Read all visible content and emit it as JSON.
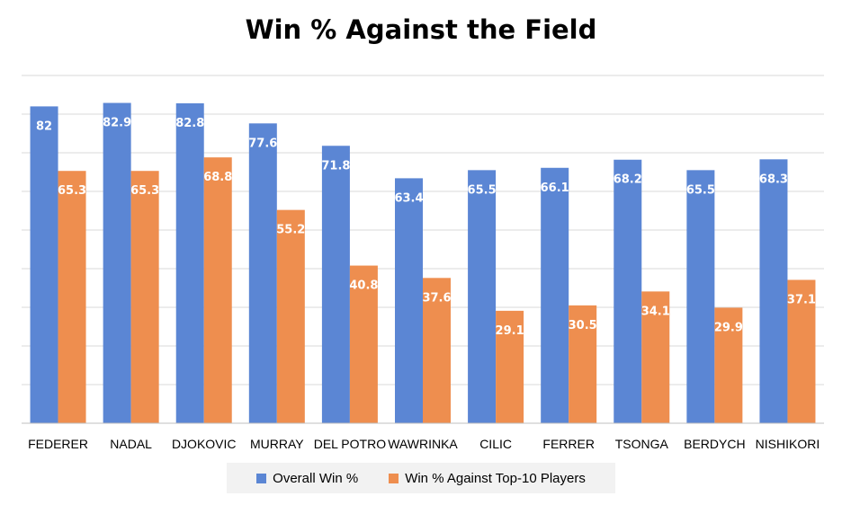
{
  "chart_data": {
    "type": "bar",
    "title": "Win % Against the Field",
    "categories": [
      "FEDERER",
      "NADAL",
      "DJOKOVIC",
      "MURRAY",
      "DEL POTRO",
      "WAWRINKA",
      "CILIC",
      "FERRER",
      "TSONGA",
      "BERDYCH",
      "NISHIKORI"
    ],
    "series": [
      {
        "name": "Overall Win %",
        "color": "#5b86d4",
        "values": [
          82,
          82.9,
          82.8,
          77.6,
          71.8,
          63.4,
          65.5,
          66.1,
          68.2,
          65.5,
          68.3
        ]
      },
      {
        "name": "Win % Against Top-10 Players",
        "color": "#ee8e4f",
        "values": [
          65.3,
          65.3,
          68.8,
          55.2,
          40.8,
          37.6,
          29.1,
          30.5,
          34.1,
          29.9,
          37.1
        ]
      }
    ],
    "value_labels": {
      "0": [
        "82",
        "82.9",
        "82.8",
        "77.6",
        "71.8",
        "63.4",
        "65.5",
        "66.1",
        "68.2",
        "65.5",
        "68.3"
      ],
      "1": [
        "65.3",
        "65.3",
        "68.8",
        "55.2",
        "40.8",
        "37.6",
        "29.1",
        "30.5",
        "34.1",
        "29.9",
        "37.1"
      ]
    },
    "xlabel": "",
    "ylabel": "",
    "ylim": [
      0,
      90
    ],
    "grid": true,
    "legend": "bottom"
  }
}
